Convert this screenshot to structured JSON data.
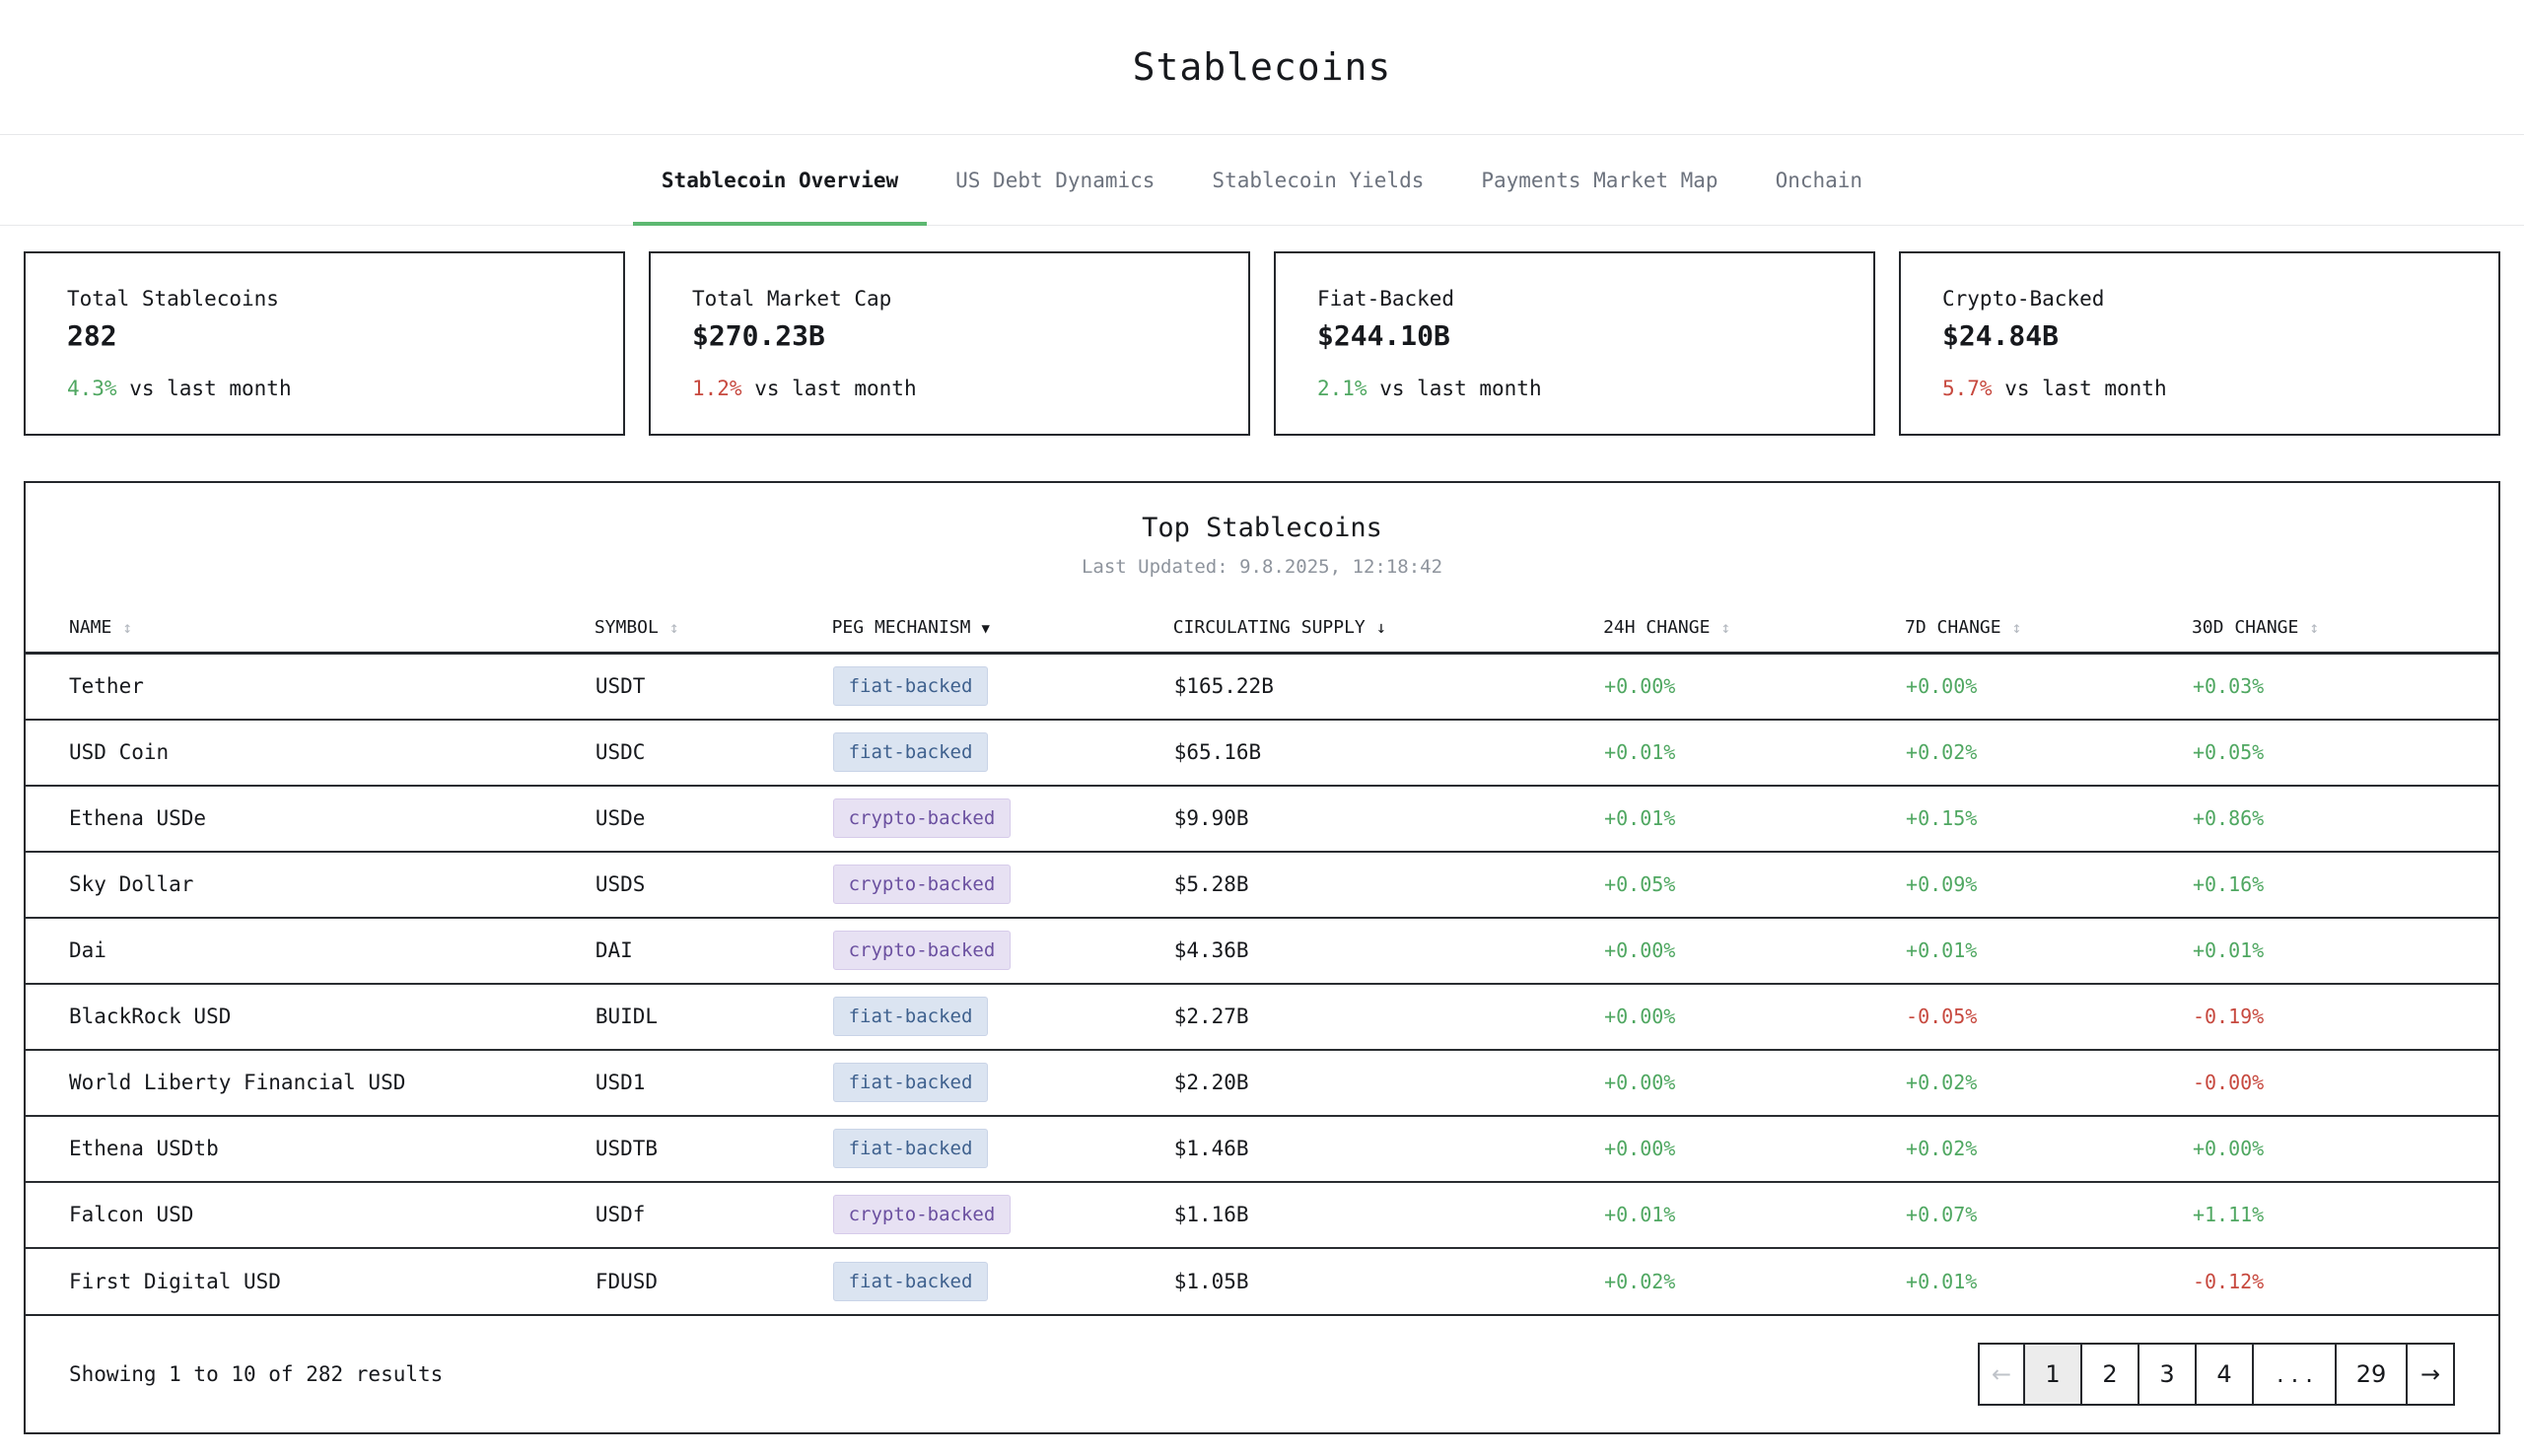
{
  "page": {
    "title": "Stablecoins"
  },
  "tabs": [
    {
      "label": "Stablecoin Overview",
      "active": true
    },
    {
      "label": "US Debt Dynamics",
      "active": false
    },
    {
      "label": "Stablecoin Yields",
      "active": false
    },
    {
      "label": "Payments Market Map",
      "active": false
    },
    {
      "label": "Onchain",
      "active": false
    }
  ],
  "stats": [
    {
      "label": "Total Stablecoins",
      "value": "282",
      "delta": "4.3%",
      "delta_suffix": " vs last month",
      "delta_direction": "up"
    },
    {
      "label": "Total Market Cap",
      "value": "$270.23B",
      "delta": "1.2%",
      "delta_suffix": " vs last month",
      "delta_direction": "down"
    },
    {
      "label": "Fiat-Backed",
      "value": "$244.10B",
      "delta": "2.1%",
      "delta_suffix": " vs last month",
      "delta_direction": "up"
    },
    {
      "label": "Crypto-Backed",
      "value": "$24.84B",
      "delta": "5.7%",
      "delta_suffix": " vs last month",
      "delta_direction": "down"
    }
  ],
  "icons": {
    "sort_both": "↕",
    "filter_down": "▼",
    "sort_desc": "↓"
  },
  "table": {
    "title": "Top Stablecoins",
    "last_updated": "Last Updated: 9.8.2025, 12:18:42",
    "columns": [
      {
        "label": "NAME",
        "icon": "sort_both"
      },
      {
        "label": "SYMBOL",
        "icon": "sort_both"
      },
      {
        "label": "PEG MECHANISM",
        "icon": "filter_down"
      },
      {
        "label": "CIRCULATING SUPPLY",
        "icon": "sort_desc"
      },
      {
        "label": "24H CHANGE",
        "icon": "sort_both"
      },
      {
        "label": "7D CHANGE",
        "icon": "sort_both"
      },
      {
        "label": "30D CHANGE",
        "icon": "sort_both"
      }
    ],
    "rows": [
      {
        "name": "Tether",
        "symbol": "USDT",
        "peg": "fiat-backed",
        "supply": "$165.22B",
        "change_24h": "+0.00%",
        "change_7d": "+0.00%",
        "change_30d": "+0.03%"
      },
      {
        "name": "USD Coin",
        "symbol": "USDC",
        "peg": "fiat-backed",
        "supply": "$65.16B",
        "change_24h": "+0.01%",
        "change_7d": "+0.02%",
        "change_30d": "+0.05%"
      },
      {
        "name": "Ethena USDe",
        "symbol": "USDe",
        "peg": "crypto-backed",
        "supply": "$9.90B",
        "change_24h": "+0.01%",
        "change_7d": "+0.15%",
        "change_30d": "+0.86%"
      },
      {
        "name": "Sky Dollar",
        "symbol": "USDS",
        "peg": "crypto-backed",
        "supply": "$5.28B",
        "change_24h": "+0.05%",
        "change_7d": "+0.09%",
        "change_30d": "+0.16%"
      },
      {
        "name": "Dai",
        "symbol": "DAI",
        "peg": "crypto-backed",
        "supply": "$4.36B",
        "change_24h": "+0.00%",
        "change_7d": "+0.01%",
        "change_30d": "+0.01%"
      },
      {
        "name": "BlackRock USD",
        "symbol": "BUIDL",
        "peg": "fiat-backed",
        "supply": "$2.27B",
        "change_24h": "+0.00%",
        "change_7d": "-0.05%",
        "change_30d": "-0.19%"
      },
      {
        "name": "World Liberty Financial USD",
        "symbol": "USD1",
        "peg": "fiat-backed",
        "supply": "$2.20B",
        "change_24h": "+0.00%",
        "change_7d": "+0.02%",
        "change_30d": "-0.00%"
      },
      {
        "name": "Ethena USDtb",
        "symbol": "USDTB",
        "peg": "fiat-backed",
        "supply": "$1.46B",
        "change_24h": "+0.00%",
        "change_7d": "+0.02%",
        "change_30d": "+0.00%"
      },
      {
        "name": "Falcon USD",
        "symbol": "USDf",
        "peg": "crypto-backed",
        "supply": "$1.16B",
        "change_24h": "+0.01%",
        "change_7d": "+0.07%",
        "change_30d": "+1.11%"
      },
      {
        "name": "First Digital USD",
        "symbol": "FDUSD",
        "peg": "fiat-backed",
        "supply": "$1.05B",
        "change_24h": "+0.02%",
        "change_7d": "+0.01%",
        "change_30d": "-0.12%"
      }
    ]
  },
  "pagination": {
    "summary": "Showing 1 to 10 of 282 results",
    "buttons": [
      {
        "label": "←",
        "kind": "prev",
        "disabled": true
      },
      {
        "label": "1",
        "kind": "page",
        "current": true
      },
      {
        "label": "2",
        "kind": "page"
      },
      {
        "label": "3",
        "kind": "page"
      },
      {
        "label": "4",
        "kind": "page"
      },
      {
        "label": "...",
        "kind": "dots"
      },
      {
        "label": "29",
        "kind": "page"
      },
      {
        "label": "→",
        "kind": "next"
      }
    ]
  },
  "colors": {
    "green": "#4fa761",
    "red": "#c7493f",
    "green_underline": "#5cb871",
    "badge_fiat_bg": "#dbe4f1",
    "badge_fiat_text": "#3f618e",
    "badge_crypto_bg": "#e7e1f3",
    "badge_crypto_text": "#6b50a0"
  }
}
